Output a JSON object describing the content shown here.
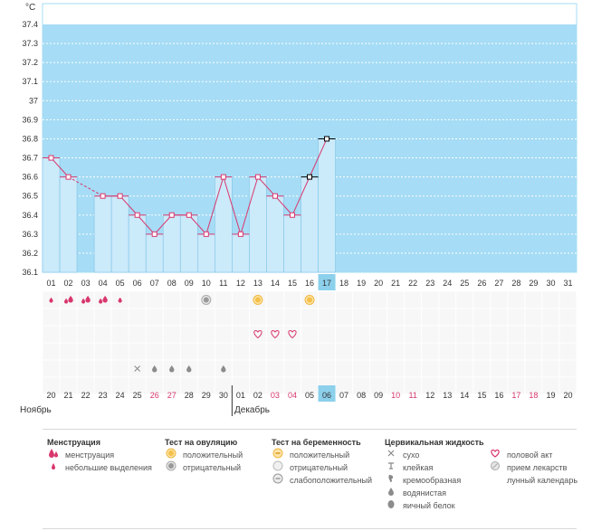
{
  "chart_data": {
    "type": "line",
    "unit": "°C",
    "ylim": [
      36.1,
      37.4
    ],
    "y_ticks": [
      "37.4",
      "37.3",
      "37.2",
      "37.1",
      "37",
      "36.9",
      "36.8",
      "36.7",
      "36.6",
      "36.5",
      "36.4",
      "36.3",
      "36.2",
      "36.1"
    ],
    "days": [
      "01",
      "02",
      "03",
      "04",
      "05",
      "06",
      "07",
      "08",
      "09",
      "10",
      "11",
      "12",
      "13",
      "14",
      "15",
      "16",
      "17",
      "18",
      "19",
      "20",
      "21",
      "22",
      "23",
      "24",
      "25",
      "26",
      "27",
      "28",
      "29",
      "30",
      "31"
    ],
    "highlight_day": "17",
    "temperatures": [
      36.7,
      36.6,
      null,
      36.5,
      36.5,
      36.4,
      36.3,
      36.4,
      36.4,
      36.3,
      36.6,
      36.3,
      36.6,
      36.5,
      36.4,
      36.6,
      36.8,
      null,
      null,
      null,
      null,
      null,
      null,
      null,
      null,
      null,
      null,
      null,
      null,
      null,
      null
    ],
    "dashed_segment_days": [
      "02",
      "04"
    ],
    "coverline_days": [
      "16",
      "17"
    ],
    "markers": {
      "menstruation": {
        "heavy": [
          "02",
          "03",
          "04"
        ],
        "light": [
          "01",
          "05"
        ]
      },
      "ovulation_test": {
        "positive": [
          "13",
          "16"
        ],
        "negative": [
          "10"
        ]
      },
      "intercourse": [
        "13",
        "14",
        "15"
      ],
      "cervical_fluid": {
        "dry": [
          "06"
        ],
        "watery": [
          "07",
          "08",
          "09",
          "11"
        ]
      }
    },
    "calendar_dates": [
      "20",
      "21",
      "22",
      "23",
      "24",
      "25",
      "26",
      "27",
      "28",
      "29",
      "30",
      "01",
      "02",
      "03",
      "04",
      "05",
      "06",
      "07",
      "08",
      "09",
      "10",
      "11",
      "12",
      "13",
      "14",
      "15",
      "16",
      "17",
      "18",
      "19",
      "20"
    ],
    "calendar_red": [
      "26",
      "27",
      "03",
      "04",
      "10",
      "11",
      "17",
      "18"
    ],
    "calendar_highlight": "06",
    "month_labels": {
      "left": "Ноябрь",
      "right": "Декабрь"
    },
    "colors": {
      "area_bg": "#a6dcf5",
      "bar_fill": "#cbeafa",
      "bar_stroke": "#7fc3e6",
      "line": "#d9376e",
      "highlight": "#8cd0ec",
      "red_text": "#d9376e"
    }
  },
  "legend": {
    "menstruation": {
      "title": "Менструация",
      "items": [
        "менструация",
        "небольшие выделения"
      ]
    },
    "ovulation": {
      "title": "Тест на овуляцию",
      "items": [
        "положительный",
        "отрицательный"
      ]
    },
    "pregnancy": {
      "title": "Тест на беременность",
      "items": [
        "положительный",
        "отрицательный",
        "слабоположительный"
      ]
    },
    "cervical": {
      "title": "Цервикальная жидкость",
      "items": [
        "сухо",
        "клейкая",
        "кремообразная",
        "водянистая",
        "яичный белок"
      ]
    },
    "other": {
      "items": [
        "половой акт",
        "прием лекарств",
        "лунный календарь"
      ]
    }
  }
}
